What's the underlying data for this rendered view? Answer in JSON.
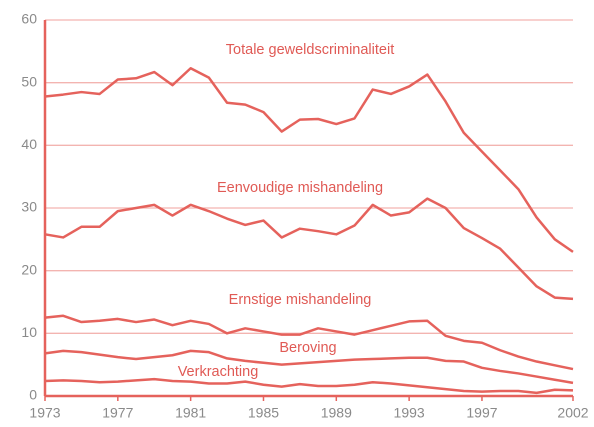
{
  "chart_data": {
    "type": "line",
    "x": [
      1973,
      1974,
      1975,
      1976,
      1977,
      1978,
      1979,
      1980,
      1981,
      1982,
      1983,
      1984,
      1985,
      1986,
      1987,
      1988,
      1989,
      1990,
      1991,
      1992,
      1993,
      1994,
      1995,
      1996,
      1997,
      1998,
      1999,
      2000,
      2001,
      2002
    ],
    "series": [
      {
        "name": "Totale geweldscriminaliteit",
        "color": "#e5625c",
        "values": [
          47.8,
          48.1,
          48.5,
          48.2,
          50.5,
          50.7,
          51.7,
          49.6,
          52.3,
          50.8,
          46.8,
          46.5,
          45.3,
          42.2,
          44.1,
          44.2,
          43.4,
          44.3,
          48.9,
          48.2,
          49.4,
          51.3,
          47,
          42,
          39,
          36,
          33,
          28.5,
          25,
          23
        ]
      },
      {
        "name": "Eenvoudige mishandeling",
        "color": "#e5625c",
        "values": [
          25.8,
          25.3,
          27,
          27,
          29.5,
          30,
          30.5,
          28.8,
          30.5,
          29.5,
          28.3,
          27.3,
          28,
          25.3,
          26.7,
          26.3,
          25.8,
          27.2,
          30.5,
          28.8,
          29.3,
          31.5,
          30,
          26.8,
          25.2,
          23.5,
          20.5,
          17.5,
          15.7,
          15.5
        ]
      },
      {
        "name": "Ernstige mishandeling",
        "color": "#e5625c",
        "values": [
          12.5,
          12.8,
          11.8,
          12,
          12.3,
          11.8,
          12.2,
          11.3,
          12,
          11.5,
          10,
          10.8,
          10.3,
          9.8,
          9.8,
          10.8,
          10.3,
          9.8,
          10.5,
          11.2,
          11.9,
          12,
          9.6,
          8.8,
          8.5,
          7.3,
          6.3,
          5.5,
          4.9,
          4.3
        ]
      },
      {
        "name": "Beroving",
        "color": "#e5625c",
        "values": [
          6.8,
          7.2,
          7,
          6.6,
          6.2,
          5.9,
          6.2,
          6.5,
          7.2,
          7,
          6,
          5.6,
          5.3,
          5,
          5.2,
          5.4,
          5.6,
          5.8,
          5.9,
          6,
          6.1,
          6.1,
          5.6,
          5.5,
          4.5,
          4,
          3.6,
          3.1,
          2.6,
          2.1
        ]
      },
      {
        "name": "Verkrachting",
        "color": "#e5625c",
        "values": [
          2.4,
          2.5,
          2.4,
          2.2,
          2.3,
          2.5,
          2.7,
          2.4,
          2.3,
          2,
          2,
          2.3,
          1.8,
          1.5,
          1.9,
          1.6,
          1.6,
          1.8,
          2.2,
          2,
          1.7,
          1.4,
          1.1,
          0.8,
          0.7,
          0.8,
          0.8,
          0.5,
          1,
          0.9
        ]
      }
    ],
    "xlim": [
      1973,
      2002
    ],
    "xticks": [
      1973,
      1977,
      1981,
      1985,
      1989,
      1993,
      1997,
      2002
    ],
    "ylim": [
      0,
      60
    ],
    "yticks": [
      0,
      10,
      20,
      30,
      40,
      50,
      60
    ],
    "grid": true,
    "grid_color": "#f3b4b0"
  }
}
